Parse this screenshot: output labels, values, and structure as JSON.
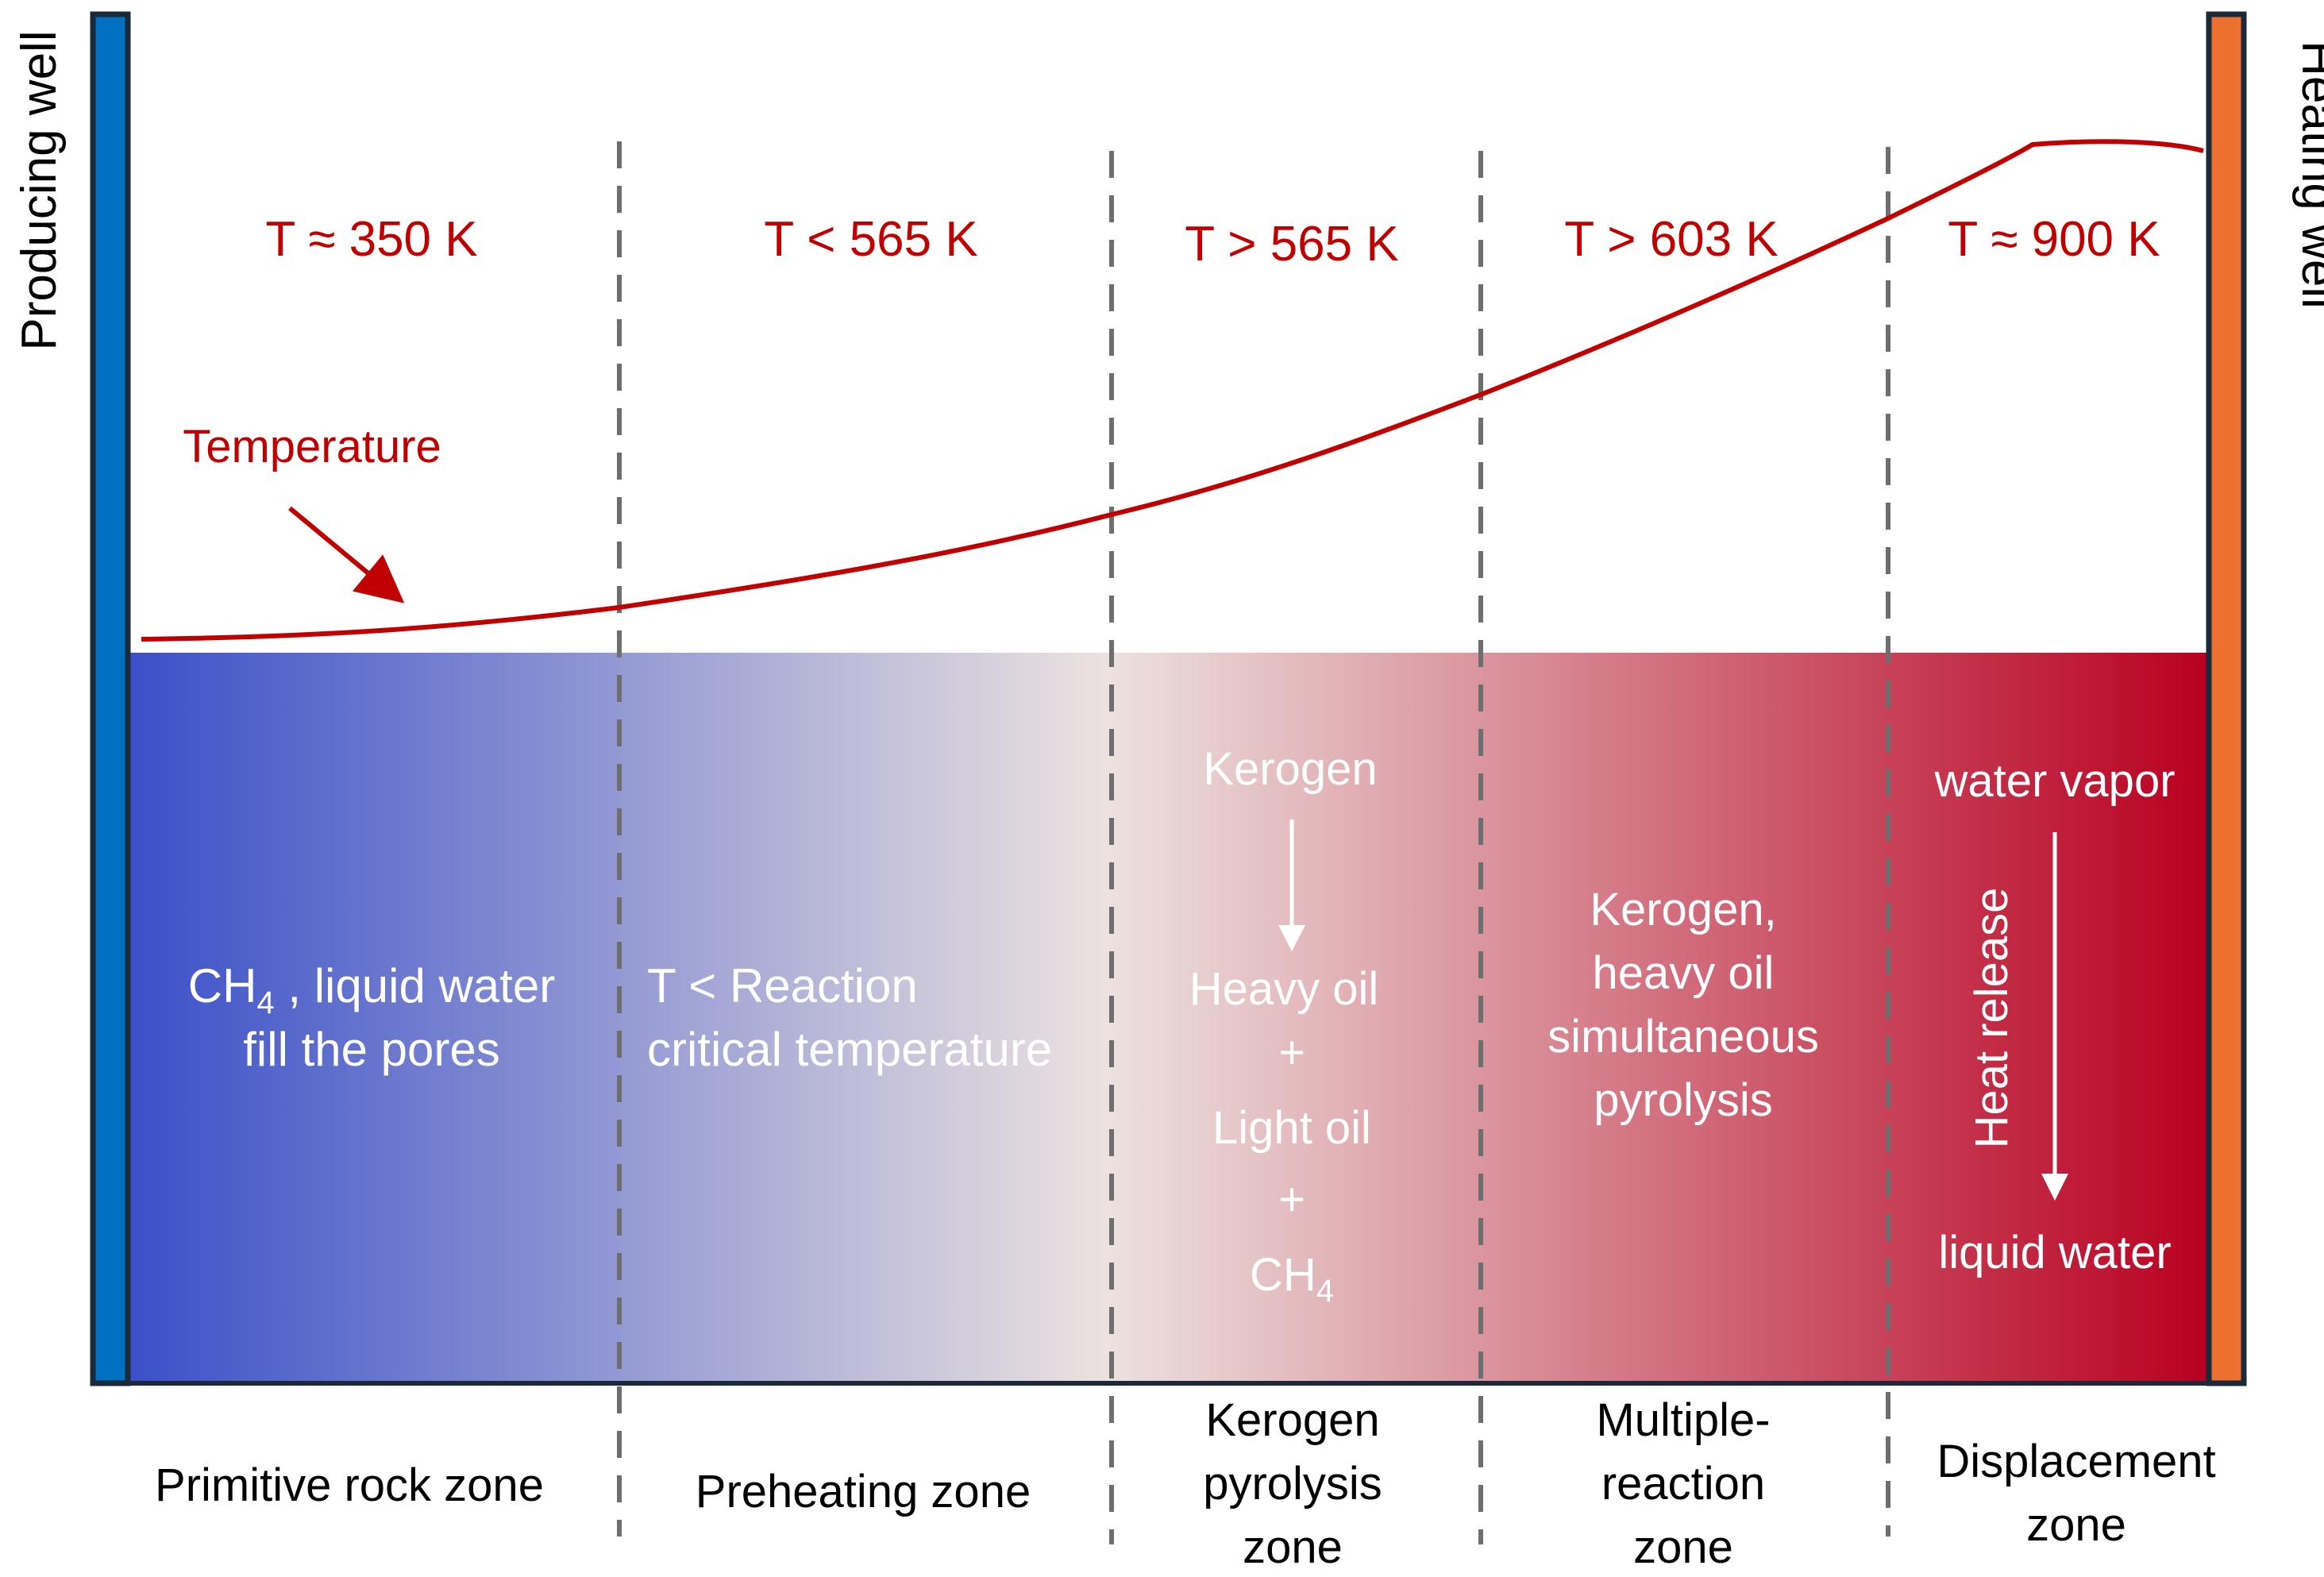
{
  "wells": {
    "producing": {
      "label": "Producing well",
      "color": "#0070c0"
    },
    "heating": {
      "label": "Heating well",
      "color": "#ed7030"
    }
  },
  "temperature_curve": {
    "label": "Temperature",
    "color": "#c00000"
  },
  "zones": [
    {
      "temp": "T ≈ 350 K",
      "name": [
        "Primitive rock zone"
      ]
    },
    {
      "temp": "T < 565 K",
      "name": [
        "Preheating zone"
      ]
    },
    {
      "temp": "T > 565 K",
      "name": [
        "Kerogen",
        "pyrolysis",
        "zone"
      ]
    },
    {
      "temp": "T > 603 K",
      "name": [
        "Multiple-",
        "reaction",
        "zone"
      ]
    },
    {
      "temp": "T ≈ 900 K",
      "name": [
        "Displacement",
        "zone"
      ]
    }
  ],
  "zone_contents": {
    "primitive": {
      "line1_main": "CH",
      "line1_sub": "4",
      "line1_rest": " , liquid water",
      "line2": "fill the pores"
    },
    "preheating": {
      "line1": "T < Reaction",
      "line2": "critical temperature"
    },
    "pyrolysis": {
      "reactant": "Kerogen",
      "product1": "Heavy oil",
      "plus": "+",
      "product2": "Light oil",
      "product3_main": "CH",
      "product3_sub": "4"
    },
    "multiple": {
      "lines": [
        "Kerogen,",
        "heavy oil",
        "simultaneous",
        "pyrolysis"
      ]
    },
    "displacement": {
      "top": "water vapor",
      "side": "Heat release",
      "bottom": "liquid water"
    }
  },
  "gradient": {
    "cold": "#3a50c8",
    "mid": "#ece2df",
    "hot": "#b80020"
  }
}
